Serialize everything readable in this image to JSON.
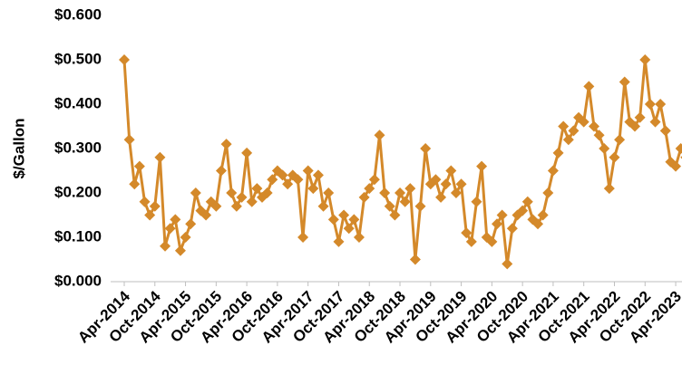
{
  "chart_data": {
    "type": "line",
    "y_label": "$/Gallon",
    "categories": [
      "Apr-2014",
      null,
      null,
      null,
      null,
      null,
      "Oct-2014",
      null,
      null,
      null,
      null,
      null,
      "Apr-2015",
      null,
      null,
      null,
      null,
      null,
      "Oct-2015",
      null,
      null,
      null,
      null,
      null,
      "Apr-2016",
      null,
      null,
      null,
      null,
      null,
      "Oct-2016",
      null,
      null,
      null,
      null,
      null,
      "Apr-2017",
      null,
      null,
      null,
      null,
      null,
      "Oct-2017",
      null,
      null,
      null,
      null,
      null,
      "Apr-2018",
      null,
      null,
      null,
      null,
      null,
      "Oct-2018",
      null,
      null,
      null,
      null,
      null,
      "Apr-2019",
      null,
      null,
      null,
      null,
      null,
      "Oct-2019",
      null,
      null,
      null,
      null,
      null,
      "Apr-2020",
      null,
      null,
      null,
      null,
      null,
      "Oct-2020",
      null,
      null,
      null,
      null,
      null,
      "Apr-2021",
      null,
      null,
      null,
      null,
      null,
      "Oct-2021",
      null,
      null,
      null,
      null,
      null,
      "Apr-2022",
      null,
      null,
      null,
      null,
      null,
      "Oct-2022",
      null,
      null,
      null,
      null,
      null,
      "Apr-2023",
      null,
      null
    ],
    "series": [
      {
        "color": "#d4892a",
        "values": [
          0.5,
          0.32,
          0.22,
          0.26,
          0.18,
          0.15,
          0.17,
          0.28,
          0.08,
          0.12,
          0.14,
          0.07,
          0.1,
          0.13,
          0.2,
          0.16,
          0.15,
          0.18,
          0.17,
          0.25,
          0.31,
          0.2,
          0.17,
          0.19,
          0.29,
          0.18,
          0.21,
          0.19,
          0.2,
          0.23,
          0.25,
          0.24,
          0.22,
          0.24,
          0.23,
          0.1,
          0.25,
          0.21,
          0.24,
          0.17,
          0.2,
          0.14,
          0.09,
          0.15,
          0.12,
          0.14,
          0.1,
          0.19,
          0.21,
          0.23,
          0.33,
          0.2,
          0.17,
          0.15,
          0.2,
          0.18,
          0.21,
          0.05,
          0.17,
          0.3,
          0.22,
          0.23,
          0.19,
          0.22,
          0.25,
          0.2,
          0.22,
          0.11,
          0.09,
          0.18,
          0.26,
          0.1,
          0.09,
          0.13,
          0.15,
          0.04,
          0.12,
          0.15,
          0.16,
          0.18,
          0.14,
          0.13,
          0.15,
          0.2,
          0.25,
          0.29,
          0.35,
          0.32,
          0.34,
          0.37,
          0.36,
          0.44,
          0.35,
          0.33,
          0.3,
          0.21,
          0.28,
          0.32,
          0.45,
          0.36,
          0.35,
          0.37,
          0.5,
          0.4,
          0.36,
          0.4,
          0.34,
          0.27,
          0.26,
          0.3,
          0.28
        ]
      }
    ],
    "ylim": [
      0,
      0.6
    ],
    "yticks": [
      {
        "value": 0,
        "label": "$0.000"
      },
      {
        "value": 0.1,
        "label": "$0.100"
      },
      {
        "value": 0.2,
        "label": "$0.200"
      },
      {
        "value": 0.3,
        "label": "$0.300"
      },
      {
        "value": 0.4,
        "label": "$0.400"
      },
      {
        "value": 0.5,
        "label": "$0.500"
      },
      {
        "value": 0.6,
        "label": "$0.600"
      }
    ],
    "grid": false
  }
}
